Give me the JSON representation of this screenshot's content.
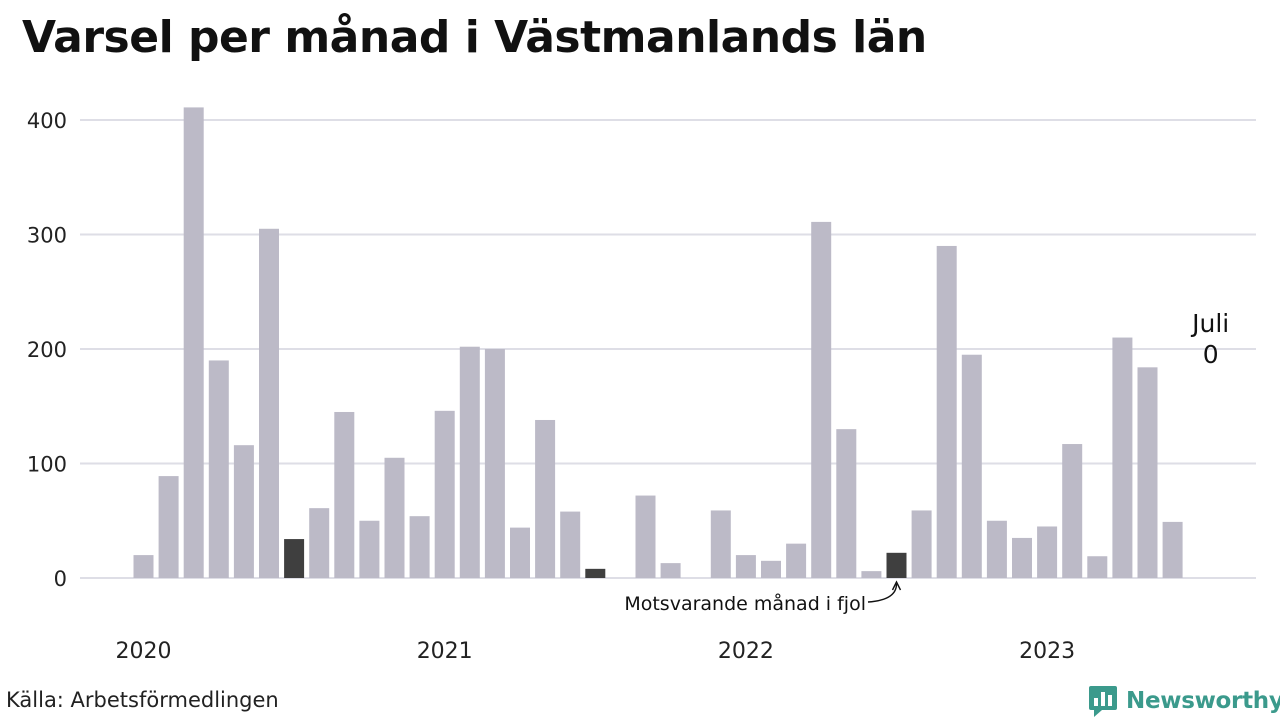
{
  "title": "Varsel per månad i Västmanlands län",
  "source": "Källa: Arbetsförmedlingen",
  "brand": {
    "name": "Newsworthy",
    "color": "#3b9a8c",
    "icon": "bar-chart-logo-icon"
  },
  "colors": {
    "bar": "#bcbac7",
    "highlight": "#3f3f3f",
    "grid": "#dedee6"
  },
  "chart_data": {
    "type": "bar",
    "title": "Varsel per månad i Västmanlands län",
    "xlabel": "",
    "ylabel": "",
    "ylim": [
      0,
      420
    ],
    "yticks": [
      0,
      100,
      200,
      300,
      400
    ],
    "grid": true,
    "year_labels": [
      {
        "label": "2020",
        "month_index": 0
      },
      {
        "label": "2021",
        "month_index": 12
      },
      {
        "label": "2022",
        "month_index": 24
      },
      {
        "label": "2023",
        "month_index": 36
      }
    ],
    "series": [
      {
        "values": [
          20,
          89,
          411,
          190,
          116,
          305,
          34,
          61,
          145,
          50,
          105,
          54,
          146,
          202,
          200,
          44,
          138,
          58,
          8,
          0,
          72,
          13,
          0,
          59,
          20,
          15,
          30,
          311,
          130,
          6,
          22,
          59,
          290,
          195,
          50,
          35,
          45,
          117,
          19,
          210,
          184,
          49,
          0
        ],
        "highlight_indices": [
          6,
          18,
          30
        ]
      }
    ],
    "annotations": {
      "latest": {
        "label": "Juli",
        "value_text": "0",
        "month_index": 42
      },
      "previous_year": {
        "text": "Motsvarande månad i fjol",
        "month_index": 30
      }
    }
  }
}
